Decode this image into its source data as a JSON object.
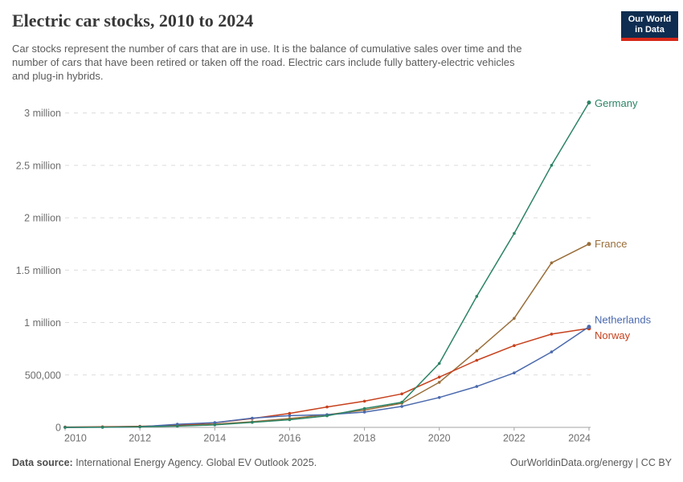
{
  "header": {
    "title": "Electric car stocks, 2010 to 2024",
    "subtitle_lines": [
      "Car stocks represent the number of cars that are in use. It is the balance of cumulative sales over time and the",
      "number of cars that have been retired or taken off the road. Electric cars include fully battery-electric vehicles",
      "and plug-in hybrids."
    ],
    "logo": {
      "line1": "Our World",
      "line2": "in Data"
    }
  },
  "footer": {
    "source_label": "Data source:",
    "source_text": " International Energy Agency. Global EV Outlook 2025.",
    "credit": "OurWorldinData.org/energy | CC BY"
  },
  "colors": {
    "germany": "#2c8465",
    "france": "#996d39",
    "netherlands": "#4a69ad",
    "norway": "#c7411d",
    "gridline": "#dcdcdc",
    "axis": "#a3a3a3",
    "tick_label": "#6e6e6e",
    "logo_bg": "#0f2d50",
    "logo_stripe": "#d72819"
  },
  "chart_data": {
    "type": "line",
    "title": "Electric car stocks, 2010 to 2024",
    "x": [
      2010,
      2011,
      2012,
      2013,
      2014,
      2015,
      2016,
      2017,
      2018,
      2019,
      2020,
      2021,
      2022,
      2023,
      2024
    ],
    "series": [
      {
        "name": "France",
        "color": "#996d39",
        "label_dy": 0,
        "values": [
          100,
          3000,
          9000,
          18000,
          31000,
          54000,
          84000,
          120000,
          165000,
          230000,
          430000,
          730000,
          1040000,
          1570000,
          1750000
        ]
      },
      {
        "name": "Norway",
        "color": "#c7411d",
        "label_dy": 9,
        "values": [
          3000,
          5600,
          10000,
          20000,
          44000,
          84000,
          133000,
          195000,
          250000,
          320000,
          480000,
          640000,
          780000,
          890000,
          945000
        ]
      },
      {
        "name": "Netherlands",
        "color": "#4a69ad",
        "label_dy": -9,
        "values": [
          270,
          1100,
          6300,
          30000,
          45000,
          88000,
          112000,
          121000,
          146000,
          200000,
          285000,
          390000,
          520000,
          720000,
          960000
        ]
      },
      {
        "name": "Germany",
        "color": "#2c8465",
        "label_dy": 1,
        "values": [
          250,
          1900,
          5300,
          12000,
          24000,
          48000,
          73000,
          110000,
          180000,
          240000,
          610000,
          1250000,
          1850000,
          2500000,
          3100000
        ]
      }
    ],
    "y_ticks": [
      {
        "value": 0,
        "label": "0"
      },
      {
        "value": 500000,
        "label": "500,000"
      },
      {
        "value": 1000000,
        "label": "1 million"
      },
      {
        "value": 1500000,
        "label": "1.5 million"
      },
      {
        "value": 2000000,
        "label": "2 million"
      },
      {
        "value": 2500000,
        "label": "2.5 million"
      },
      {
        "value": 3000000,
        "label": "3 million"
      }
    ],
    "x_ticks": [
      2010,
      2012,
      2014,
      2016,
      2018,
      2020,
      2022,
      2024
    ],
    "xlim": [
      2010,
      2024
    ],
    "ylim": [
      0,
      3200000
    ],
    "grid": "horizontal-dashed",
    "legend_position": "end-of-line-labels"
  }
}
